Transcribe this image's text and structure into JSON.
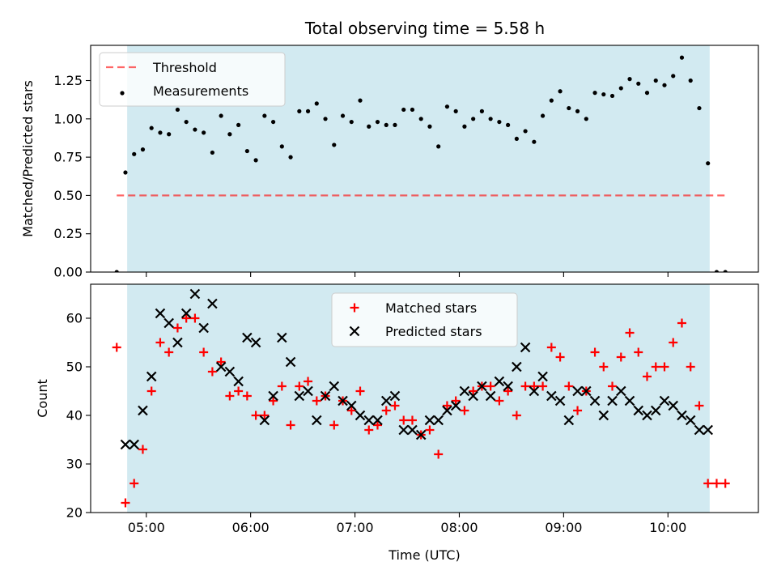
{
  "title": "Total observing time = 5.58 h",
  "colors": {
    "shade": "#add8e6",
    "threshold": "#ff0000",
    "measurements": "#000000",
    "matched": "#ff0000",
    "predicted": "#000000"
  },
  "chart_data": [
    {
      "type": "scatter",
      "ylabel": "Matched/Predicted stars",
      "xlabel": "",
      "xlim": [
        "04:28",
        "10:52"
      ],
      "ylim": [
        0,
        1.48
      ],
      "x_ticks": [
        "05:00",
        "06:00",
        "07:00",
        "08:00",
        "09:00",
        "10:00"
      ],
      "x_tick_labels_visible": false,
      "y_ticks": [
        0.0,
        0.25,
        0.5,
        0.75,
        1.0,
        1.25
      ],
      "y_tick_labels": [
        "0.00",
        "0.25",
        "0.50",
        "0.75",
        "1.00",
        "1.25"
      ],
      "shaded_interval": [
        "04:49",
        "10:24"
      ],
      "legend": {
        "placement": "upper-left",
        "entries": [
          "Threshold",
          "Measurements"
        ]
      },
      "series": [
        {
          "name": "Threshold",
          "style": "dashed-line",
          "x": [
            "04:43",
            "10:33"
          ],
          "y": [
            0.5,
            0.5
          ]
        },
        {
          "name": "Measurements",
          "style": "dot",
          "x": [
            "04:43",
            "04:48",
            "04:53",
            "04:58",
            "05:03",
            "05:08",
            "05:13",
            "05:18",
            "05:23",
            "05:28",
            "05:33",
            "05:38",
            "05:43",
            "05:48",
            "05:53",
            "05:58",
            "06:03",
            "06:08",
            "06:13",
            "06:18",
            "06:23",
            "06:28",
            "06:33",
            "06:38",
            "06:43",
            "06:48",
            "06:53",
            "06:58",
            "07:03",
            "07:08",
            "07:13",
            "07:18",
            "07:23",
            "07:28",
            "07:33",
            "07:38",
            "07:43",
            "07:48",
            "07:53",
            "07:58",
            "08:03",
            "08:08",
            "08:13",
            "08:18",
            "08:23",
            "08:28",
            "08:33",
            "08:38",
            "08:43",
            "08:48",
            "08:53",
            "08:58",
            "09:03",
            "09:08",
            "09:13",
            "09:18",
            "09:23",
            "09:28",
            "09:33",
            "09:38",
            "09:43",
            "09:48",
            "09:53",
            "09:58",
            "10:03",
            "10:08",
            "10:13",
            "10:18",
            "10:23",
            "10:28",
            "10:33"
          ],
          "y": [
            0.0,
            0.65,
            0.77,
            0.8,
            0.94,
            0.91,
            0.9,
            1.06,
            0.98,
            0.93,
            0.91,
            0.78,
            1.02,
            0.9,
            0.96,
            0.79,
            0.73,
            1.02,
            0.98,
            0.82,
            0.75,
            1.05,
            1.05,
            1.1,
            1.0,
            0.83,
            1.02,
            0.98,
            1.12,
            0.95,
            0.98,
            0.96,
            0.96,
            1.06,
            1.06,
            1.0,
            0.95,
            0.82,
            1.08,
            1.05,
            0.95,
            1.0,
            1.05,
            1.0,
            0.98,
            0.96,
            0.87,
            0.92,
            0.85,
            1.02,
            1.12,
            1.18,
            1.07,
            1.05,
            1.0,
            1.17,
            1.16,
            1.15,
            1.2,
            1.26,
            1.23,
            1.17,
            1.25,
            1.22,
            1.28,
            1.4,
            1.25,
            1.07,
            0.71,
            0.0,
            0.0
          ]
        }
      ]
    },
    {
      "type": "scatter",
      "ylabel": "Count",
      "xlabel": "Time (UTC)",
      "xlim": [
        "04:28",
        "10:52"
      ],
      "ylim": [
        20,
        67
      ],
      "x_ticks": [
        "05:00",
        "06:00",
        "07:00",
        "08:00",
        "09:00",
        "10:00"
      ],
      "x_tick_labels": [
        "05:00",
        "06:00",
        "07:00",
        "08:00",
        "09:00",
        "10:00"
      ],
      "y_ticks": [
        20,
        30,
        40,
        50,
        60
      ],
      "y_tick_labels": [
        "20",
        "30",
        "40",
        "50",
        "60"
      ],
      "shaded_interval": [
        "04:49",
        "10:24"
      ],
      "legend": {
        "placement": "upper-center",
        "entries": [
          "Matched stars",
          "Predicted stars"
        ]
      },
      "series": [
        {
          "name": "Matched stars",
          "style": "plus",
          "x": [
            "04:43",
            "04:48",
            "04:53",
            "04:58",
            "05:03",
            "05:08",
            "05:13",
            "05:18",
            "05:23",
            "05:28",
            "05:33",
            "05:38",
            "05:43",
            "05:48",
            "05:53",
            "05:58",
            "06:03",
            "06:08",
            "06:13",
            "06:18",
            "06:23",
            "06:28",
            "06:33",
            "06:38",
            "06:43",
            "06:48",
            "06:53",
            "06:58",
            "07:03",
            "07:08",
            "07:13",
            "07:18",
            "07:23",
            "07:28",
            "07:33",
            "07:38",
            "07:43",
            "07:48",
            "07:53",
            "07:58",
            "08:03",
            "08:08",
            "08:13",
            "08:18",
            "08:23",
            "08:28",
            "08:33",
            "08:38",
            "08:43",
            "08:48",
            "08:53",
            "08:58",
            "09:03",
            "09:08",
            "09:13",
            "09:18",
            "09:23",
            "09:28",
            "09:33",
            "09:38",
            "09:43",
            "09:48",
            "09:53",
            "09:58",
            "10:03",
            "10:08",
            "10:13",
            "10:18",
            "10:23",
            "10:28",
            "10:33"
          ],
          "y": [
            54,
            22,
            26,
            33,
            45,
            55,
            53,
            58,
            60,
            60,
            53,
            49,
            51,
            44,
            45,
            44,
            40,
            40,
            43,
            46,
            38,
            46,
            47,
            43,
            44,
            38,
            43,
            41,
            45,
            37,
            38,
            41,
            42,
            39,
            39,
            36,
            37,
            32,
            42,
            43,
            41,
            45,
            46,
            46,
            43,
            45,
            40,
            46,
            46,
            46,
            54,
            52,
            46,
            41,
            45,
            53,
            50,
            46,
            52,
            57,
            53,
            48,
            50,
            50,
            55,
            59,
            50,
            42,
            26,
            26,
            26
          ]
        },
        {
          "name": "Predicted stars",
          "style": "cross",
          "x": [
            "04:48",
            "04:53",
            "04:58",
            "05:03",
            "05:08",
            "05:13",
            "05:18",
            "05:23",
            "05:28",
            "05:33",
            "05:38",
            "05:43",
            "05:48",
            "05:53",
            "05:58",
            "06:03",
            "06:08",
            "06:13",
            "06:18",
            "06:23",
            "06:28",
            "06:33",
            "06:38",
            "06:43",
            "06:48",
            "06:53",
            "06:58",
            "07:03",
            "07:08",
            "07:13",
            "07:18",
            "07:23",
            "07:28",
            "07:33",
            "07:38",
            "07:43",
            "07:48",
            "07:53",
            "07:58",
            "08:03",
            "08:08",
            "08:13",
            "08:18",
            "08:23",
            "08:28",
            "08:33",
            "08:38",
            "08:43",
            "08:48",
            "08:53",
            "08:58",
            "09:03",
            "09:08",
            "09:13",
            "09:18",
            "09:23",
            "09:28",
            "09:33",
            "09:38",
            "09:43",
            "09:48",
            "09:53",
            "09:58",
            "10:03",
            "10:08",
            "10:13",
            "10:18",
            "10:23"
          ],
          "y": [
            34,
            34,
            41,
            48,
            61,
            59,
            55,
            61,
            65,
            58,
            63,
            50,
            49,
            47,
            56,
            55,
            39,
            44,
            56,
            51,
            44,
            45,
            39,
            44,
            46,
            43,
            42,
            40,
            39,
            39,
            43,
            44,
            37,
            37,
            36,
            39,
            39,
            41,
            42,
            45,
            44,
            46,
            44,
            47,
            46,
            50,
            54,
            45,
            48,
            44,
            43,
            39,
            45,
            45,
            43,
            40,
            43,
            45,
            43,
            41,
            40,
            41,
            43,
            42,
            40,
            39,
            37,
            37
          ]
        }
      ]
    }
  ]
}
